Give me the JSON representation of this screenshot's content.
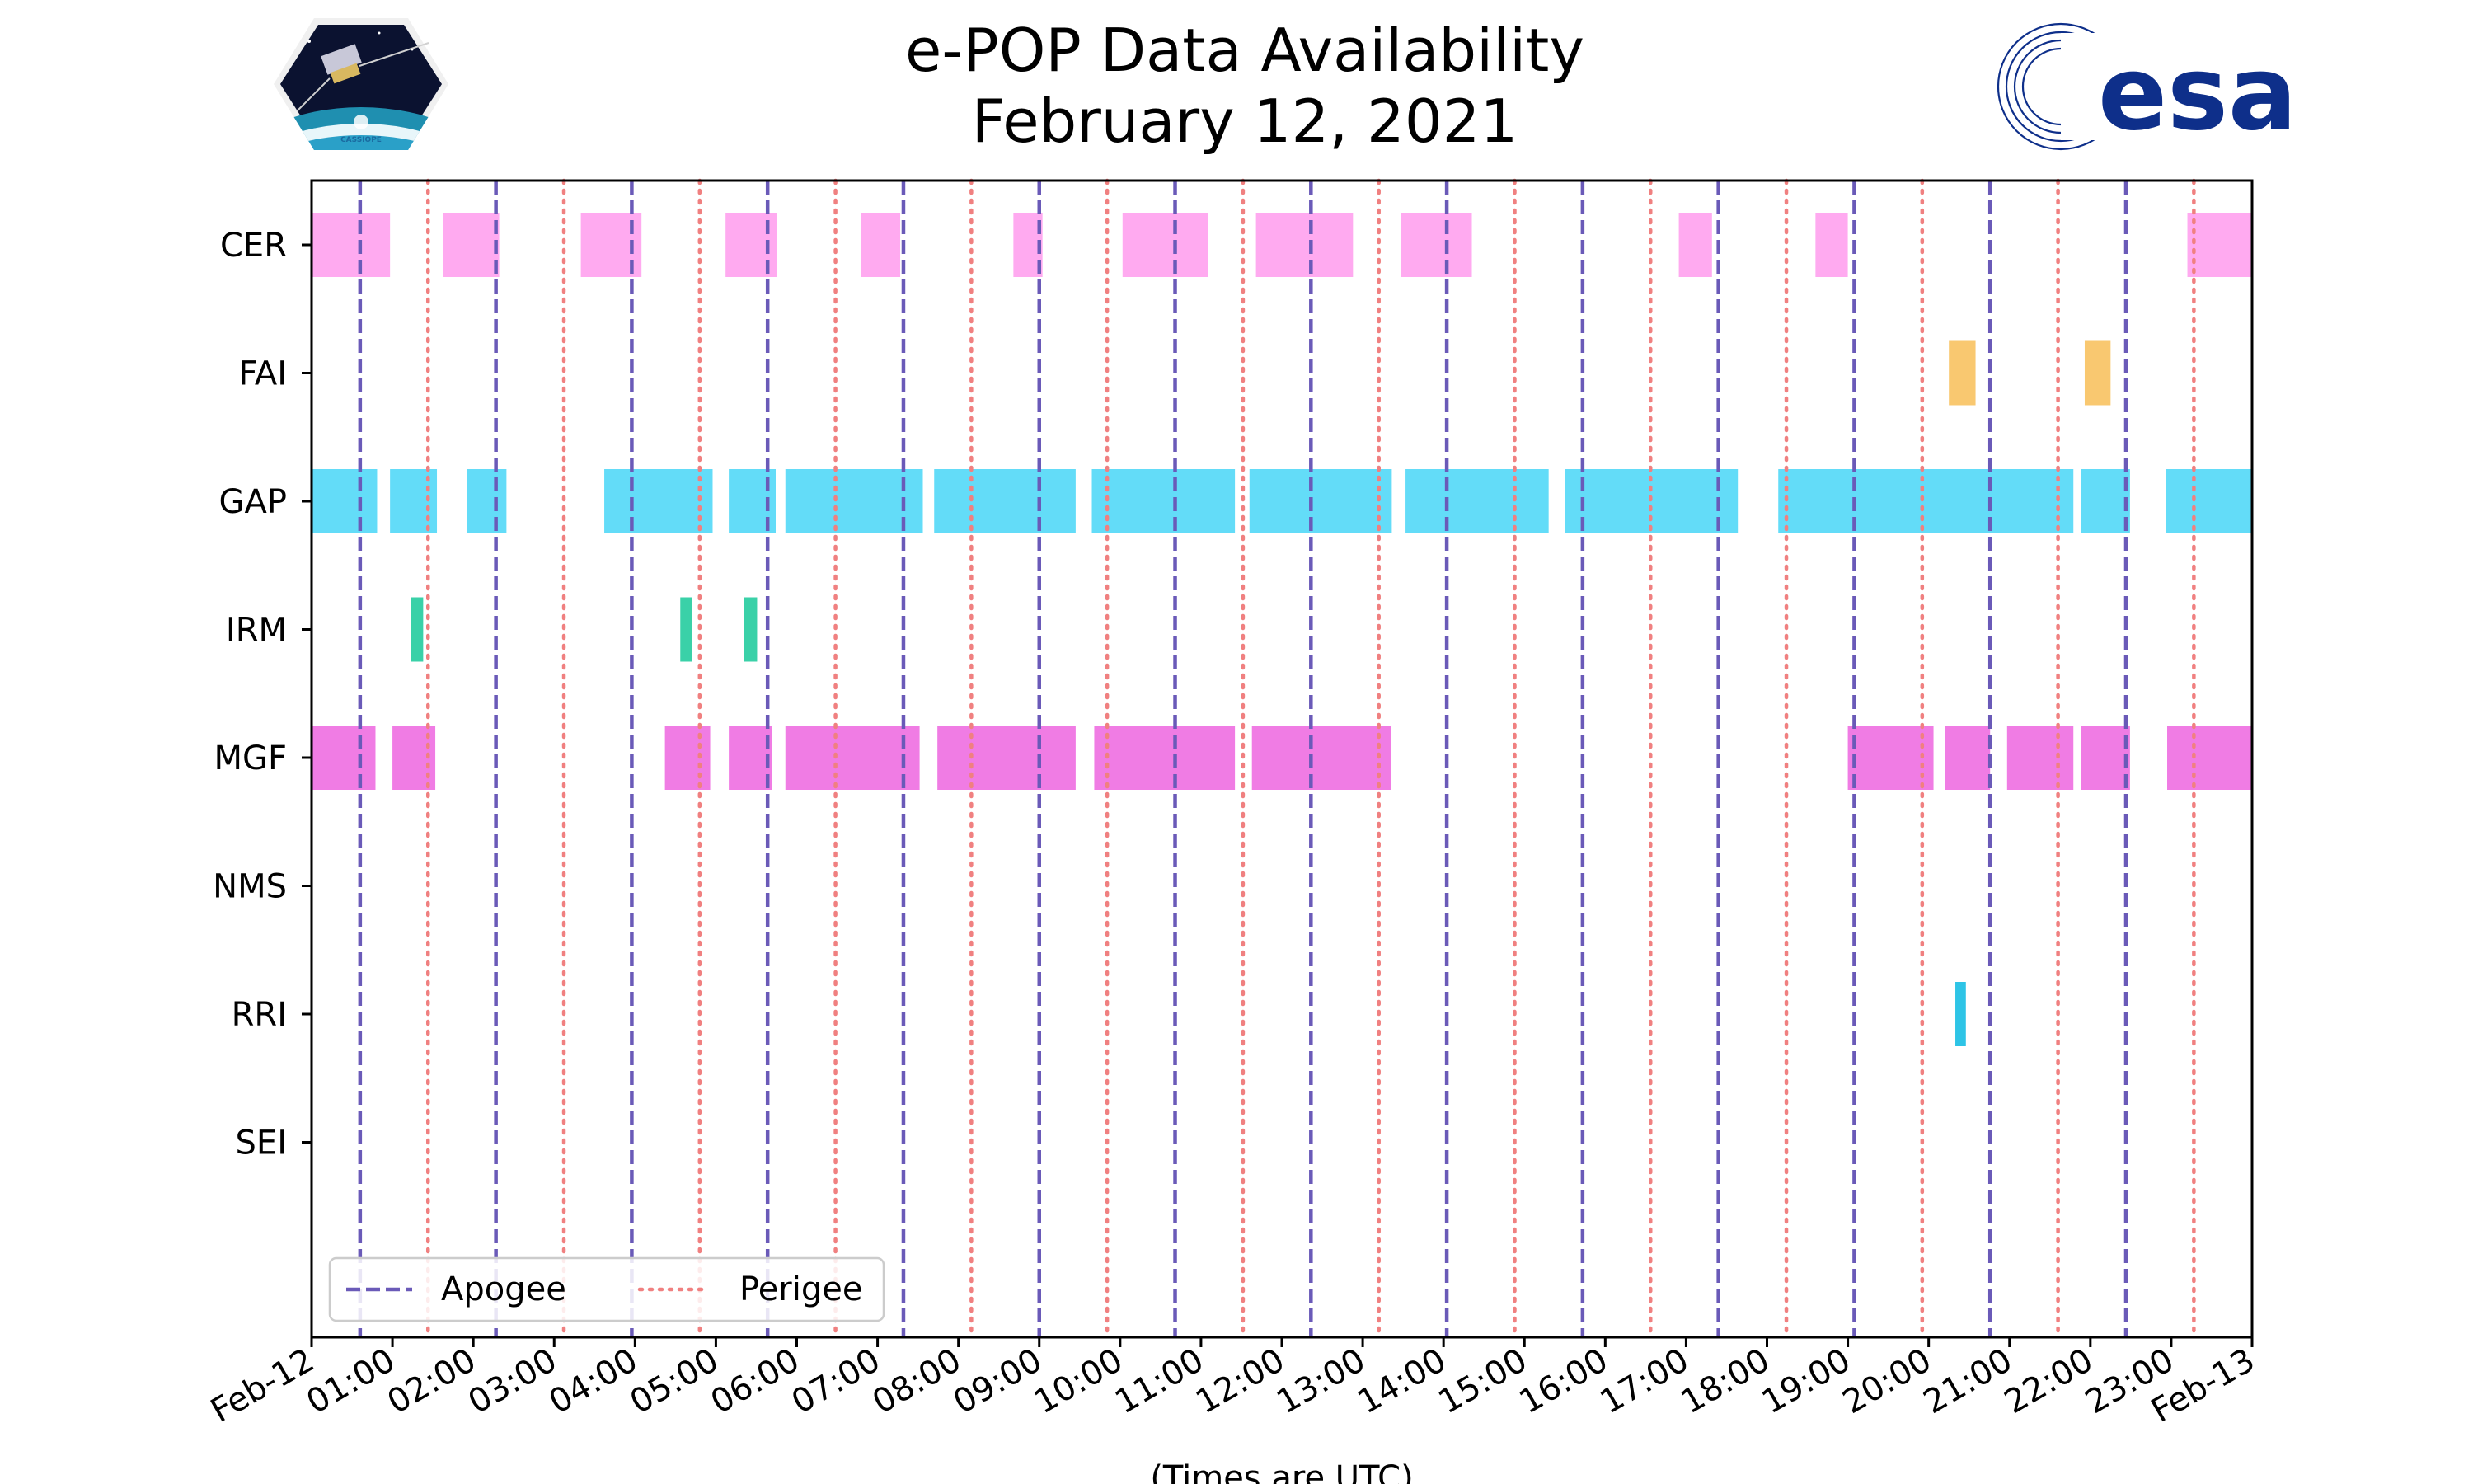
{
  "header": {
    "title_line1": "e-POP Data Availability",
    "title_line2": "February 12, 2021",
    "logo_left_text": "CASSIOPE",
    "logo_right_text": "esa"
  },
  "colors": {
    "CER": "#ffaaf0",
    "FAI": "#f9c870",
    "GAP": "#63dcf8",
    "IRM": "#3ad1a8",
    "MGF": "#f07ce4",
    "NMS": "#888888",
    "RRI": "#2ec4e6",
    "SEI": "#888888",
    "apogee": "#6a5ab8",
    "perigee": "#f08080",
    "esa_blue": "#0e2f8a"
  },
  "chart_data": {
    "type": "timeline",
    "title": "e-POP Data Availability",
    "subtitle": "February 12, 2021",
    "xlabel": "(Times are UTC)",
    "ylabel": "",
    "xlim_hours": [
      0,
      24
    ],
    "x_tick_hours": [
      0,
      1,
      2,
      3,
      4,
      5,
      6,
      7,
      8,
      9,
      10,
      11,
      12,
      13,
      14,
      15,
      16,
      17,
      18,
      19,
      20,
      21,
      22,
      23,
      24
    ],
    "x_tick_labels": [
      "Feb-12",
      "01:00",
      "02:00",
      "03:00",
      "04:00",
      "05:00",
      "06:00",
      "07:00",
      "08:00",
      "09:00",
      "10:00",
      "11:00",
      "12:00",
      "13:00",
      "14:00",
      "15:00",
      "16:00",
      "17:00",
      "18:00",
      "19:00",
      "20:00",
      "21:00",
      "22:00",
      "23:00",
      "Feb-13"
    ],
    "instruments": [
      "CER",
      "FAI",
      "GAP",
      "IRM",
      "MGF",
      "NMS",
      "RRI",
      "SEI"
    ],
    "series": [
      {
        "name": "CER",
        "intervals": [
          [
            0.0,
            0.97
          ],
          [
            1.63,
            2.32
          ],
          [
            3.33,
            4.08
          ],
          [
            5.12,
            5.76
          ],
          [
            6.8,
            7.28
          ],
          [
            8.68,
            9.04
          ],
          [
            10.03,
            11.09
          ],
          [
            11.68,
            12.88
          ],
          [
            13.47,
            14.35
          ],
          [
            16.91,
            17.32
          ],
          [
            18.6,
            19.0
          ],
          [
            23.2,
            24.0
          ]
        ]
      },
      {
        "name": "FAI",
        "intervals": [
          [
            20.25,
            20.58
          ],
          [
            21.93,
            22.25
          ]
        ]
      },
      {
        "name": "GAP",
        "intervals": [
          [
            0.0,
            0.81
          ],
          [
            0.97,
            1.55
          ],
          [
            1.92,
            2.41
          ],
          [
            3.62,
            4.96
          ],
          [
            5.16,
            5.74
          ],
          [
            5.86,
            7.56
          ],
          [
            7.7,
            9.45
          ],
          [
            9.65,
            11.42
          ],
          [
            11.6,
            13.36
          ],
          [
            13.53,
            15.3
          ],
          [
            15.5,
            17.64
          ],
          [
            18.14,
            21.79
          ],
          [
            21.88,
            22.49
          ],
          [
            22.93,
            24.0
          ]
        ]
      },
      {
        "name": "IRM",
        "intervals": [
          [
            1.23,
            1.38
          ],
          [
            4.56,
            4.7
          ],
          [
            5.35,
            5.51
          ]
        ]
      },
      {
        "name": "MGF",
        "intervals": [
          [
            0.0,
            0.79
          ],
          [
            1.0,
            1.53
          ],
          [
            4.37,
            4.93
          ],
          [
            5.16,
            5.69
          ],
          [
            5.86,
            7.52
          ],
          [
            7.74,
            9.45
          ],
          [
            9.68,
            11.42
          ],
          [
            11.63,
            13.35
          ],
          [
            19.0,
            20.06
          ],
          [
            20.2,
            20.76
          ],
          [
            20.97,
            21.79
          ],
          [
            21.88,
            22.49
          ],
          [
            22.95,
            24.0
          ]
        ]
      },
      {
        "name": "NMS",
        "intervals": []
      },
      {
        "name": "RRI",
        "intervals": [
          [
            20.33,
            20.46
          ]
        ]
      },
      {
        "name": "SEI",
        "intervals": []
      }
    ],
    "apogee_hours": [
      0.6,
      2.28,
      3.96,
      5.64,
      7.32,
      9.0,
      10.68,
      12.36,
      14.04,
      15.72,
      17.4,
      19.08,
      20.76,
      22.44
    ],
    "perigee_hours": [
      1.44,
      3.12,
      4.8,
      6.48,
      8.16,
      9.84,
      11.52,
      13.2,
      14.88,
      16.56,
      18.24,
      19.92,
      21.6,
      23.28
    ],
    "legend": [
      {
        "key": "apogee",
        "label": "Apogee",
        "style": "dashed"
      },
      {
        "key": "perigee",
        "label": "Perigee",
        "style": "dotted"
      }
    ],
    "legend_loc": "lower-left"
  }
}
